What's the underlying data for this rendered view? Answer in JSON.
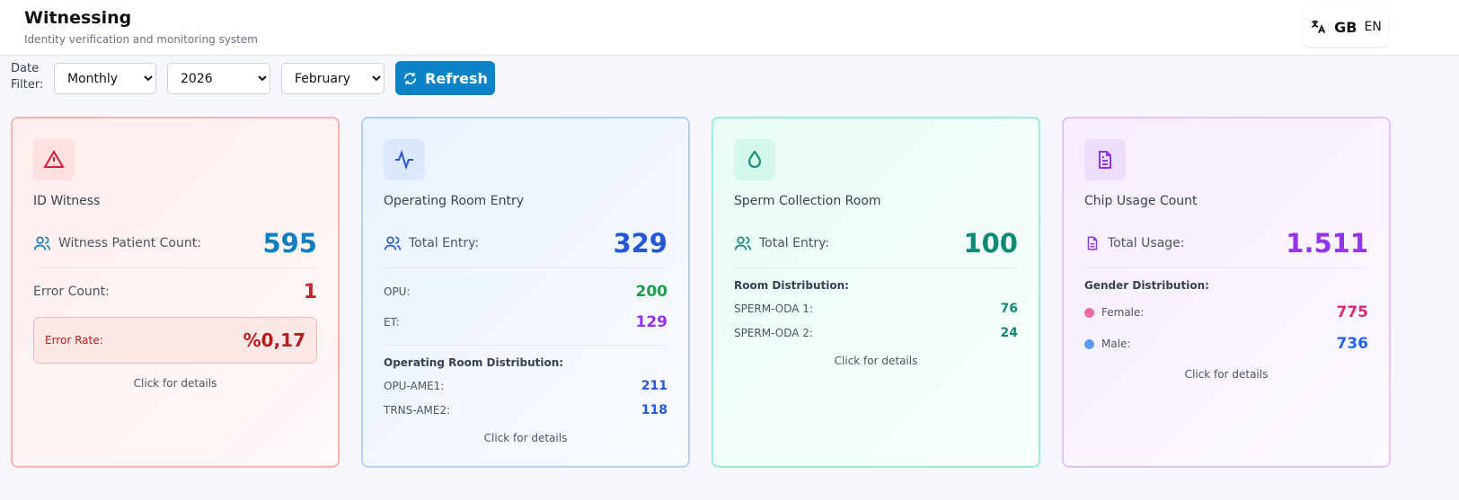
{
  "header": {
    "title": "Witnessing",
    "subtitle": "Identity verification and monitoring system",
    "language": {
      "flag": "GB",
      "code": "EN"
    }
  },
  "filters": {
    "label": "Date Filter:",
    "period": "Monthly",
    "year": "2026",
    "month": "February",
    "refresh": "Refresh"
  },
  "cards": [
    {
      "title": "ID Witness",
      "main_label": "Witness Patient Count:",
      "main_value": "595",
      "error_label": "Error Count:",
      "error_value": "1",
      "rate_label": "Error Rate:",
      "rate_value": "%0,17",
      "footer": "Click for details"
    },
    {
      "title": "Operating Room Entry",
      "main_label": "Total Entry:",
      "main_value": "329",
      "rows": [
        {
          "label": "OPU:",
          "value": "200"
        },
        {
          "label": "ET:",
          "value": "129"
        }
      ],
      "distribution_title": "Operating Room Distribution:",
      "distribution": [
        {
          "label": "OPU-AME1:",
          "value": "211"
        },
        {
          "label": "TRNS-AME2:",
          "value": "118"
        }
      ],
      "footer": "Click for details"
    },
    {
      "title": "Sperm Collection Room",
      "main_label": "Total Entry:",
      "main_value": "100",
      "distribution_title": "Room Distribution:",
      "distribution": [
        {
          "label": "SPERM-ODA 1:",
          "value": "76"
        },
        {
          "label": "SPERM-ODA 2:",
          "value": "24"
        }
      ],
      "footer": "Click for details"
    },
    {
      "title": "Chip Usage Count",
      "main_label": "Total Usage:",
      "main_value": "1.511",
      "distribution_title": "Gender Distribution:",
      "distribution": [
        {
          "label": "Female:",
          "value": "775"
        },
        {
          "label": "Male:",
          "value": "736"
        }
      ],
      "footer": "Click for details"
    }
  ]
}
